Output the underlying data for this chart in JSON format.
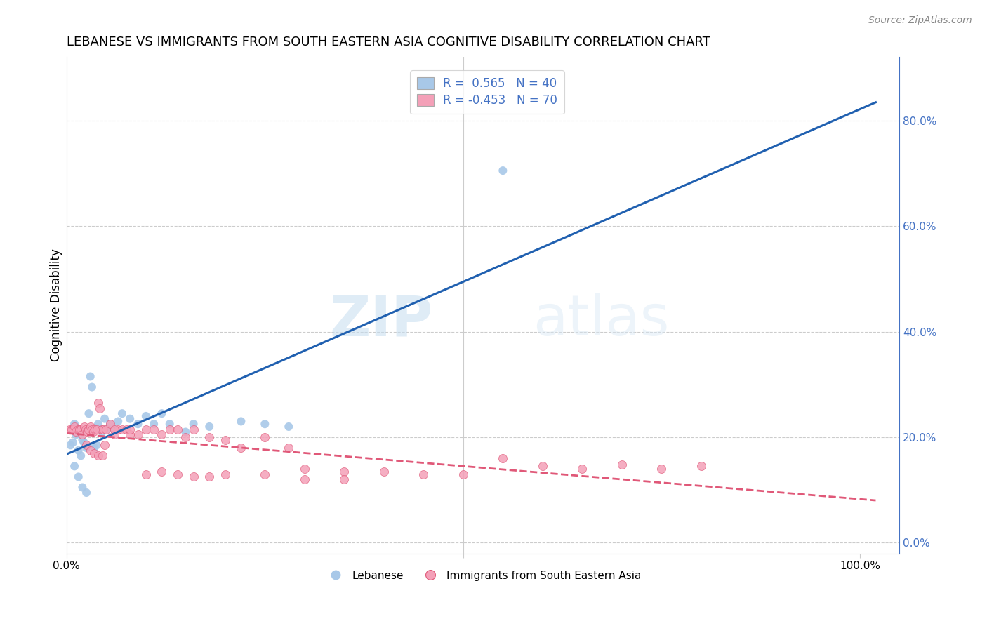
{
  "title": "LEBANESE VS IMMIGRANTS FROM SOUTH EASTERN ASIA COGNITIVE DISABILITY CORRELATION CHART",
  "source": "Source: ZipAtlas.com",
  "ylabel": "Cognitive Disability",
  "right_yticks": [
    0.0,
    0.2,
    0.4,
    0.6,
    0.8
  ],
  "right_yticklabels": [
    "0.0%",
    "20.0%",
    "40.0%",
    "60.0%",
    "80.0%"
  ],
  "xlim": [
    0.0,
    1.05
  ],
  "ylim": [
    -0.02,
    0.92
  ],
  "blue_R": 0.565,
  "blue_N": 40,
  "pink_R": -0.453,
  "pink_N": 70,
  "blue_color": "#a8c8e8",
  "pink_color": "#f4a0b8",
  "blue_line_color": "#2060b0",
  "pink_line_color": "#e05878",
  "grid_color": "#cccccc",
  "watermark_zip": "ZIP",
  "watermark_atlas": "atlas",
  "blue_scatter_x": [
    0.005,
    0.008,
    0.01,
    0.012,
    0.015,
    0.018,
    0.02,
    0.022,
    0.025,
    0.028,
    0.03,
    0.032,
    0.035,
    0.038,
    0.04,
    0.042,
    0.045,
    0.048,
    0.05,
    0.055,
    0.06,
    0.065,
    0.07,
    0.08,
    0.09,
    0.1,
    0.11,
    0.12,
    0.13,
    0.15,
    0.16,
    0.18,
    0.22,
    0.25,
    0.28,
    0.55,
    0.01,
    0.015,
    0.02,
    0.025
  ],
  "blue_scatter_y": [
    0.185,
    0.19,
    0.225,
    0.205,
    0.175,
    0.165,
    0.195,
    0.19,
    0.18,
    0.245,
    0.315,
    0.295,
    0.18,
    0.185,
    0.225,
    0.215,
    0.21,
    0.235,
    0.215,
    0.225,
    0.215,
    0.23,
    0.245,
    0.235,
    0.225,
    0.24,
    0.225,
    0.245,
    0.225,
    0.21,
    0.225,
    0.22,
    0.23,
    0.225,
    0.22,
    0.705,
    0.145,
    0.125,
    0.105,
    0.095
  ],
  "pink_scatter_x": [
    0.004,
    0.006,
    0.008,
    0.01,
    0.012,
    0.014,
    0.016,
    0.018,
    0.02,
    0.022,
    0.024,
    0.026,
    0.028,
    0.03,
    0.032,
    0.034,
    0.036,
    0.038,
    0.04,
    0.042,
    0.044,
    0.046,
    0.048,
    0.05,
    0.055,
    0.06,
    0.065,
    0.07,
    0.075,
    0.08,
    0.09,
    0.1,
    0.11,
    0.12,
    0.13,
    0.14,
    0.15,
    0.16,
    0.18,
    0.2,
    0.22,
    0.25,
    0.28,
    0.3,
    0.35,
    0.4,
    0.45,
    0.5,
    0.55,
    0.6,
    0.65,
    0.7,
    0.75,
    0.8,
    0.06,
    0.08,
    0.1,
    0.12,
    0.14,
    0.16,
    0.18,
    0.2,
    0.25,
    0.3,
    0.35,
    0.025,
    0.03,
    0.035,
    0.04,
    0.045
  ],
  "pink_scatter_y": [
    0.215,
    0.215,
    0.215,
    0.22,
    0.21,
    0.215,
    0.215,
    0.215,
    0.205,
    0.22,
    0.215,
    0.21,
    0.215,
    0.22,
    0.215,
    0.21,
    0.215,
    0.215,
    0.265,
    0.255,
    0.215,
    0.215,
    0.185,
    0.215,
    0.225,
    0.205,
    0.215,
    0.215,
    0.215,
    0.205,
    0.205,
    0.215,
    0.215,
    0.205,
    0.215,
    0.215,
    0.2,
    0.215,
    0.2,
    0.195,
    0.18,
    0.2,
    0.18,
    0.14,
    0.135,
    0.135,
    0.13,
    0.13,
    0.16,
    0.145,
    0.14,
    0.148,
    0.14,
    0.145,
    0.215,
    0.215,
    0.13,
    0.135,
    0.13,
    0.125,
    0.125,
    0.13,
    0.13,
    0.12,
    0.12,
    0.185,
    0.175,
    0.17,
    0.165,
    0.165
  ]
}
